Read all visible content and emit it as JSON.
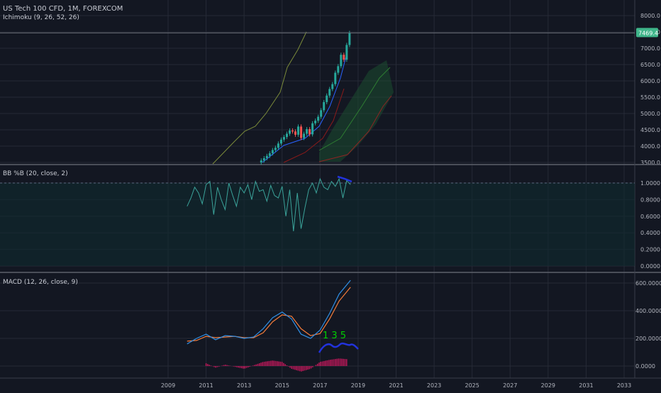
{
  "symbol": "US Tech 100 CFD, 1M, FOREXCOM",
  "indicators": {
    "ichimoku": "Ichimoku (9, 26, 52, 26)",
    "bbpb": "BB %B (20, close, 2)",
    "macd": "MACD (12, 26, close, 9)"
  },
  "annotation_text": "1  3  5",
  "colors": {
    "background": "#131722",
    "grid": "#262a36",
    "candle_up": "#26a69a",
    "candle_down": "#ef5350",
    "price_label": "#3fb58a",
    "bb_line": "#3ba39a",
    "bb_band": "#0f2a2e",
    "macd_line": "#2f8fe6",
    "signal_line": "#f57c3a",
    "histogram": "#c2185b",
    "annotation": "#00d000",
    "drawing": "#2233dd",
    "lagging_span": "#7a8a3a",
    "cloud": "#1b4d2f"
  },
  "chart_data": [
    {
      "type": "candlestick",
      "title": "US Tech 100 CFD, 1M, FOREXCOM",
      "x_ticks": [
        "2009",
        "2011",
        "2013",
        "2015",
        "2017",
        "2019",
        "2021",
        "2023",
        "2025",
        "2027",
        "2029",
        "2031",
        "2033"
      ],
      "y_ticks": [
        "8000.0",
        "7500.0",
        "7000.0",
        "6500.0",
        "6000.0",
        "5500.0",
        "5000.0",
        "4500.0",
        "4000.0",
        "3500.0"
      ],
      "ylim": [
        3500,
        8000
      ],
      "last_price": "7469.4",
      "last_price_value": 7469.4,
      "series": [
        {
          "name": "close",
          "x": [
            2013.9,
            2014.05,
            2014.2,
            2014.35,
            2014.5,
            2014.65,
            2014.8,
            2014.95,
            2015.1,
            2015.25,
            2015.4,
            2015.55,
            2015.7,
            2015.85,
            2016.0,
            2016.15,
            2016.3,
            2016.45,
            2016.6,
            2016.75,
            2016.9,
            2017.05,
            2017.2,
            2017.35,
            2017.5,
            2017.65,
            2017.8,
            2017.95,
            2018.1,
            2018.25,
            2018.4,
            2018.55
          ],
          "y": [
            3560,
            3630,
            3700,
            3780,
            3880,
            3950,
            4080,
            4200,
            4280,
            4380,
            4480,
            4450,
            4350,
            4600,
            4250,
            4380,
            4520,
            4360,
            4700,
            4780,
            4900,
            5100,
            5350,
            5550,
            5750,
            5900,
            6250,
            6450,
            6800,
            6650,
            7100,
            7469
          ]
        }
      ]
    },
    {
      "type": "line",
      "title": "BB %B (20, close, 2)",
      "y_ticks": [
        "1.0000",
        "0.8000",
        "0.6000",
        "0.4000",
        "0.2000",
        "0.0000"
      ],
      "ylim": [
        -0.02,
        1.12
      ],
      "series": [
        {
          "name": "%B",
          "x": [
            2010.0,
            2010.2,
            2010.4,
            2010.6,
            2010.8,
            2011.0,
            2011.2,
            2011.4,
            2011.6,
            2011.8,
            2012.0,
            2012.2,
            2012.4,
            2012.6,
            2012.8,
            2013.0,
            2013.2,
            2013.4,
            2013.6,
            2013.8,
            2014.0,
            2014.2,
            2014.4,
            2014.6,
            2014.8,
            2015.0,
            2015.2,
            2015.4,
            2015.6,
            2015.8,
            2016.0,
            2016.2,
            2016.4,
            2016.6,
            2016.8,
            2017.0,
            2017.2,
            2017.4,
            2017.6,
            2017.8,
            2018.0,
            2018.2,
            2018.4,
            2018.6
          ],
          "y": [
            0.72,
            0.82,
            0.95,
            0.88,
            0.75,
            0.98,
            1.02,
            0.62,
            0.95,
            0.8,
            0.68,
            1.0,
            0.85,
            0.72,
            0.95,
            0.88,
            0.98,
            0.8,
            1.02,
            0.9,
            0.92,
            0.78,
            0.97,
            0.85,
            0.82,
            0.96,
            0.6,
            0.92,
            0.42,
            0.88,
            0.45,
            0.7,
            0.92,
            1.0,
            0.88,
            1.05,
            0.95,
            0.92,
            1.02,
            0.96,
            1.05,
            0.82,
            1.03,
            0.98
          ]
        }
      ]
    },
    {
      "type": "line",
      "title": "MACD (12, 26, close, 9)",
      "y_ticks": [
        "600.0000",
        "400.0000",
        "200.0000",
        "0.0000"
      ],
      "ylim": [
        -70,
        660
      ],
      "series": [
        {
          "name": "MACD",
          "x": [
            2010.0,
            2010.5,
            2011.0,
            2011.5,
            2012.0,
            2012.5,
            2013.0,
            2013.5,
            2014.0,
            2014.5,
            2015.0,
            2015.5,
            2016.0,
            2016.5,
            2017.0,
            2017.5,
            2018.0,
            2018.6
          ],
          "y": [
            160,
            200,
            230,
            190,
            220,
            215,
            200,
            210,
            270,
            350,
            390,
            340,
            230,
            200,
            260,
            380,
            520,
            620
          ]
        },
        {
          "name": "Signal",
          "x": [
            2010.0,
            2010.5,
            2011.0,
            2011.5,
            2012.0,
            2012.5,
            2013.0,
            2013.5,
            2014.0,
            2014.5,
            2015.0,
            2015.5,
            2016.0,
            2016.5,
            2017.0,
            2017.5,
            2018.0,
            2018.6
          ],
          "y": [
            180,
            185,
            215,
            205,
            210,
            215,
            205,
            205,
            240,
            320,
            370,
            360,
            270,
            220,
            235,
            340,
            470,
            570
          ]
        },
        {
          "name": "Histogram",
          "x": [
            2011.0,
            2011.5,
            2012.0,
            2012.5,
            2013.0,
            2013.5,
            2014.0,
            2014.5,
            2015.0,
            2015.5,
            2016.0,
            2016.5,
            2017.0,
            2017.5,
            2018.0,
            2018.4
          ],
          "y": [
            20,
            -12,
            10,
            -5,
            -20,
            5,
            30,
            40,
            30,
            -20,
            -40,
            -20,
            30,
            45,
            55,
            50
          ]
        }
      ]
    }
  ]
}
